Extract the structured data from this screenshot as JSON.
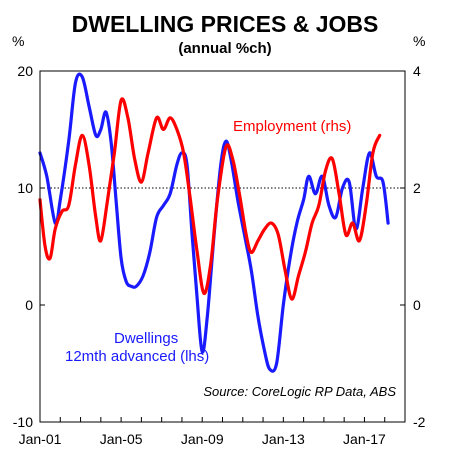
{
  "chart_data": {
    "type": "line",
    "title": "DWELLING PRICES & JOBS",
    "subtitle": "(annual %ch)",
    "left_unit": "%",
    "right_unit": "%",
    "y_left": {
      "lim": [
        -10,
        20
      ],
      "ticks": [
        "20",
        "10",
        "0",
        "-10"
      ]
    },
    "y_right": {
      "lim": [
        -2,
        4
      ],
      "ticks": [
        "4",
        "2",
        "0",
        "-2"
      ]
    },
    "x_ticks": [
      "Jan-01",
      "Jan-05",
      "Jan-09",
      "Jan-13",
      "Jan-17"
    ],
    "x_range": [
      "2001-01",
      "2019-01"
    ],
    "reference_line": 10,
    "source": "Source: CoreLogic RP Data, ABS",
    "colors": {
      "employment": "#ff0000",
      "dwellings": "#1a1aff"
    },
    "series": [
      {
        "name": "Dwellings 12mth advanced (lhs)",
        "label_lines": [
          "Dwellings",
          "12mth advanced (lhs)"
        ],
        "axis": "left",
        "points": [
          [
            "2001-01",
            13
          ],
          [
            "2001-05",
            11
          ],
          [
            "2001-10",
            7
          ],
          [
            "2002-01",
            9
          ],
          [
            "2002-06",
            14
          ],
          [
            "2002-10",
            19
          ],
          [
            "2003-02",
            19.5
          ],
          [
            "2003-06",
            17
          ],
          [
            "2003-10",
            14.5
          ],
          [
            "2004-01",
            15
          ],
          [
            "2004-04",
            16.5
          ],
          [
            "2004-07",
            14
          ],
          [
            "2004-10",
            9
          ],
          [
            "2005-01",
            4
          ],
          [
            "2005-04",
            2
          ],
          [
            "2005-07",
            1.6
          ],
          [
            "2005-10",
            1.6
          ],
          [
            "2006-02",
            2.5
          ],
          [
            "2006-06",
            4.5
          ],
          [
            "2006-10",
            7.5
          ],
          [
            "2007-02",
            8.5
          ],
          [
            "2007-06",
            9.5
          ],
          [
            "2007-10",
            12
          ],
          [
            "2008-01",
            13
          ],
          [
            "2008-04",
            12
          ],
          [
            "2008-07",
            6
          ],
          [
            "2008-10",
            0.5
          ],
          [
            "2009-01",
            -4
          ],
          [
            "2009-04",
            -1
          ],
          [
            "2009-08",
            6
          ],
          [
            "2009-12",
            12
          ],
          [
            "2010-03",
            14
          ],
          [
            "2010-06",
            12.5
          ],
          [
            "2010-10",
            9
          ],
          [
            "2011-02",
            6
          ],
          [
            "2011-06",
            3
          ],
          [
            "2011-10",
            -1
          ],
          [
            "2012-02",
            -4
          ],
          [
            "2012-05",
            -5.5
          ],
          [
            "2012-09",
            -5
          ],
          [
            "2013-01",
            0
          ],
          [
            "2013-05",
            4
          ],
          [
            "2013-09",
            7
          ],
          [
            "2014-01",
            9
          ],
          [
            "2014-04",
            11
          ],
          [
            "2014-08",
            9.5
          ],
          [
            "2014-12",
            11
          ],
          [
            "2015-04",
            8.5
          ],
          [
            "2015-08",
            7.5
          ],
          [
            "2015-12",
            10
          ],
          [
            "2016-04",
            10.5
          ],
          [
            "2016-08",
            6.5
          ],
          [
            "2016-12",
            10
          ],
          [
            "2017-04",
            13
          ],
          [
            "2017-08",
            11
          ],
          [
            "2017-12",
            10.5
          ],
          [
            "2018-03",
            7
          ]
        ]
      },
      {
        "name": "Employment (rhs)",
        "label_lines": [
          "Employment (rhs)"
        ],
        "axis": "right",
        "points": [
          [
            "2001-01",
            1.8
          ],
          [
            "2001-04",
            1.0
          ],
          [
            "2001-07",
            0.8
          ],
          [
            "2001-10",
            1.3
          ],
          [
            "2002-02",
            1.6
          ],
          [
            "2002-06",
            1.7
          ],
          [
            "2002-10",
            2.4
          ],
          [
            "2003-02",
            2.9
          ],
          [
            "2003-06",
            2.4
          ],
          [
            "2003-10",
            1.5
          ],
          [
            "2004-01",
            1.1
          ],
          [
            "2004-05",
            1.8
          ],
          [
            "2004-09",
            2.6
          ],
          [
            "2005-01",
            3.5
          ],
          [
            "2005-05",
            3.2
          ],
          [
            "2005-09",
            2.5
          ],
          [
            "2006-01",
            2.1
          ],
          [
            "2006-05",
            2.6
          ],
          [
            "2006-10",
            3.2
          ],
          [
            "2007-02",
            3.0
          ],
          [
            "2007-06",
            3.2
          ],
          [
            "2007-10",
            3.0
          ],
          [
            "2008-02",
            2.6
          ],
          [
            "2008-06",
            1.8
          ],
          [
            "2008-10",
            0.9
          ],
          [
            "2009-02",
            0.2
          ],
          [
            "2009-06",
            0.7
          ],
          [
            "2009-10",
            1.8
          ],
          [
            "2010-03",
            2.7
          ],
          [
            "2010-07",
            2.5
          ],
          [
            "2010-11",
            1.9
          ],
          [
            "2011-03",
            1.2
          ],
          [
            "2011-06",
            0.9
          ],
          [
            "2011-10",
            1.1
          ],
          [
            "2012-02",
            1.3
          ],
          [
            "2012-06",
            1.4
          ],
          [
            "2012-10",
            1.2
          ],
          [
            "2013-02",
            0.6
          ],
          [
            "2013-06",
            0.1
          ],
          [
            "2013-10",
            0.5
          ],
          [
            "2014-02",
            0.9
          ],
          [
            "2014-06",
            1.4
          ],
          [
            "2014-10",
            1.7
          ],
          [
            "2015-02",
            2.3
          ],
          [
            "2015-06",
            2.5
          ],
          [
            "2015-10",
            1.9
          ],
          [
            "2016-02",
            1.2
          ],
          [
            "2016-06",
            1.4
          ],
          [
            "2016-10",
            1.1
          ],
          [
            "2017-02",
            1.7
          ],
          [
            "2017-06",
            2.6
          ],
          [
            "2017-10",
            2.9
          ]
        ]
      }
    ]
  }
}
